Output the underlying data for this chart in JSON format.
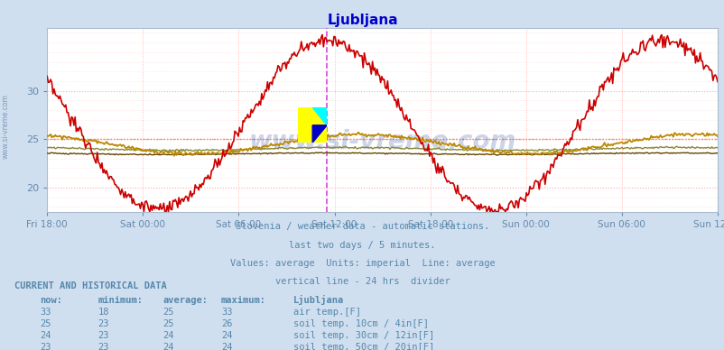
{
  "title": "Ljubljana",
  "title_color": "#0000cc",
  "background_color": "#d0dff0",
  "plot_bg_color": "#ffffff",
  "grid_color_major": "#ffaaaa",
  "grid_color_minor": "#ffdddd",
  "tick_color": "#6688aa",
  "text_color": "#5588aa",
  "watermark": "www.si-vreme.com",
  "subtitle_lines": [
    "Slovenia / weather data - automatic stations.",
    "last two days / 5 minutes.",
    "Values: average  Units: imperial  Line: average",
    "vertical line - 24 hrs  divider"
  ],
  "ylim": [
    17.5,
    36.5
  ],
  "yticks": [
    20,
    25,
    30
  ],
  "x_labels": [
    "Fri 18:00",
    "Sat 00:00",
    "Sat 06:00",
    "Sat 12:00",
    "Sat 18:00",
    "Sun 00:00",
    "Sun 06:00",
    "Sun 12:00"
  ],
  "num_points": 576,
  "air_temp_color": "#cc0000",
  "soil10_color": "#bb8800",
  "soil30_color": "#888833",
  "soil50_color": "#664400",
  "avg_air_color": "#ff6666",
  "avg_soil10_color": "#ddaa44",
  "vline_color": "#dd44dd",
  "legend_data": [
    {
      "label": "air temp.[F]",
      "color": "#cc0000",
      "now": 33,
      "min": 18,
      "avg": 25,
      "max": 33
    },
    {
      "label": "soil temp. 10cm / 4in[F]",
      "color": "#bb8800",
      "now": 25,
      "min": 23,
      "avg": 25,
      "max": 26
    },
    {
      "label": "soil temp. 30cm / 12in[F]",
      "color": "#888833",
      "now": 24,
      "min": 23,
      "avg": 24,
      "max": 24
    },
    {
      "label": "soil temp. 50cm / 20in[F]",
      "color": "#664400",
      "now": 23,
      "min": 23,
      "avg": 24,
      "max": 24
    }
  ]
}
